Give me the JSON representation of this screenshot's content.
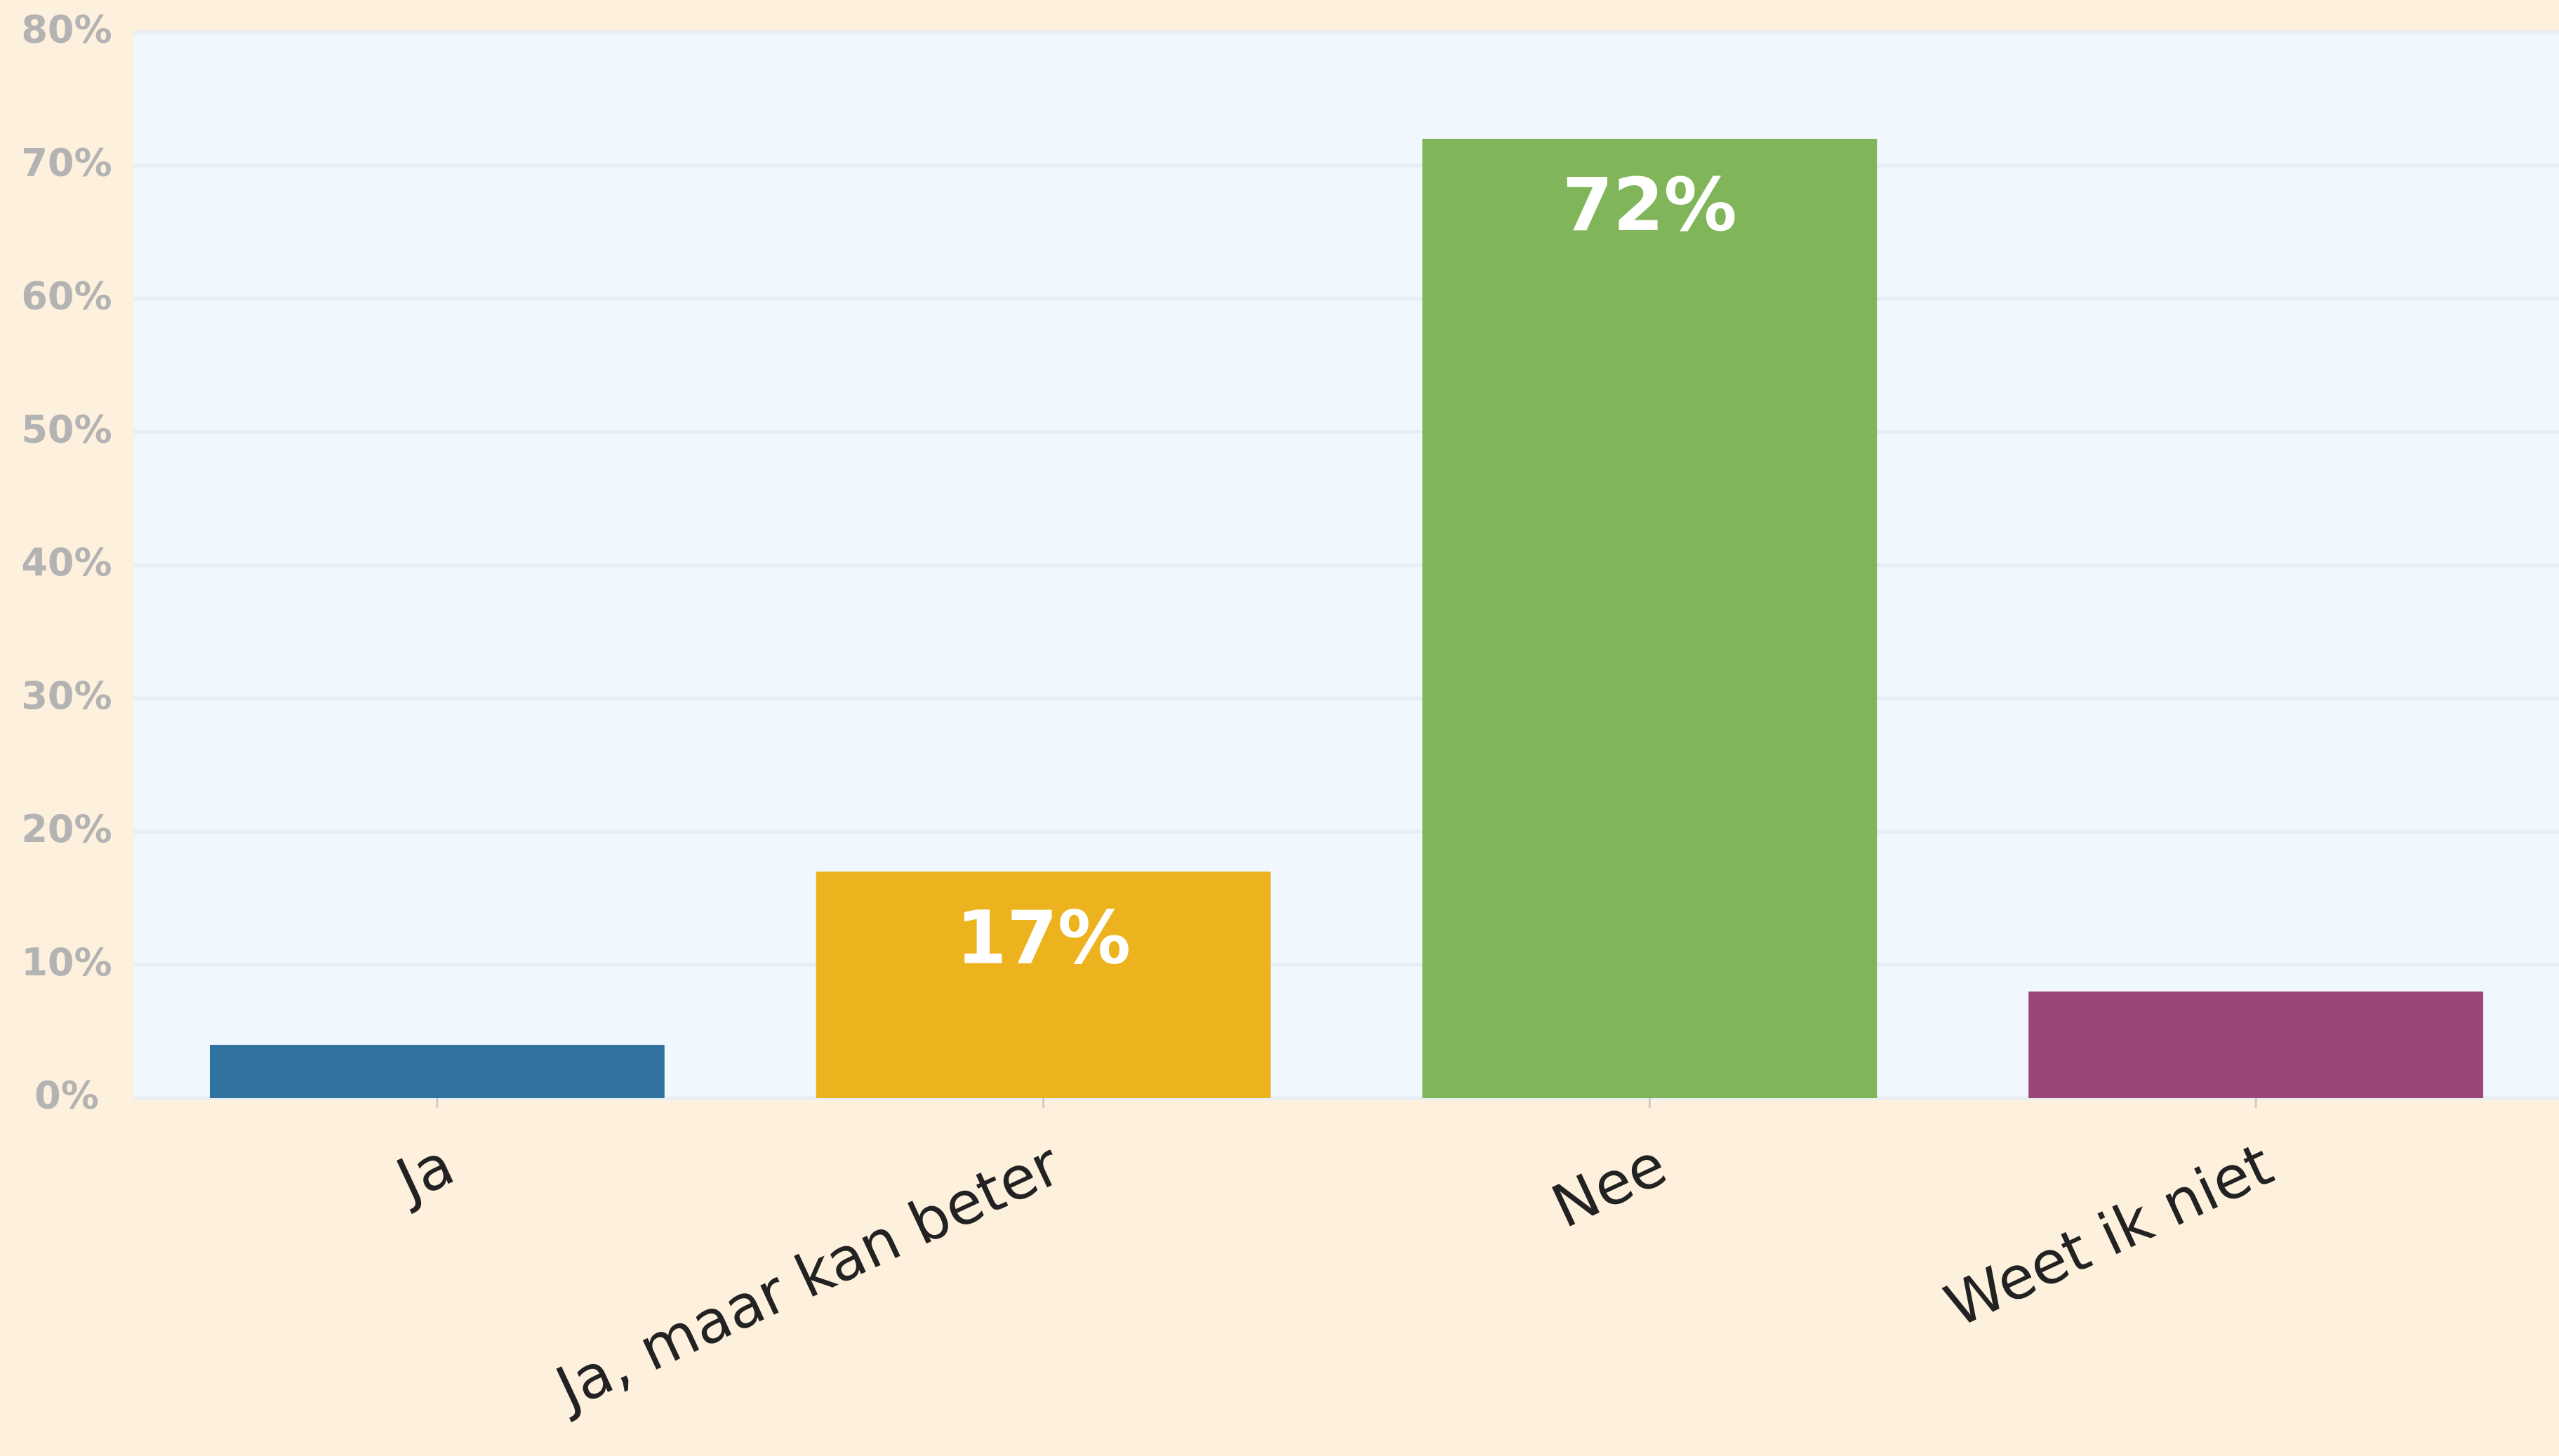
{
  "chart_data": {
    "type": "bar",
    "categories": [
      "Ja",
      "Ja, maar kan beter",
      "Nee",
      "Weet ik niet"
    ],
    "values": [
      4,
      17,
      72,
      8
    ],
    "value_labels": [
      null,
      "17%",
      "72%",
      null
    ],
    "colors": [
      "#31739f",
      "#ecb31e",
      "#80b55a",
      "#9c4677"
    ],
    "ylim": [
      0,
      80
    ],
    "yticks": [
      {
        "value": 0,
        "label": "0%"
      },
      {
        "value": 10,
        "label": "10%"
      },
      {
        "value": 20,
        "label": "20%"
      },
      {
        "value": 30,
        "label": "30%"
      },
      {
        "value": 40,
        "label": "40%"
      },
      {
        "value": 50,
        "label": "50%"
      },
      {
        "value": 60,
        "label": "60%"
      },
      {
        "value": 70,
        "label": "70%"
      },
      {
        "value": 80,
        "label": "80%"
      }
    ],
    "grid": true
  }
}
